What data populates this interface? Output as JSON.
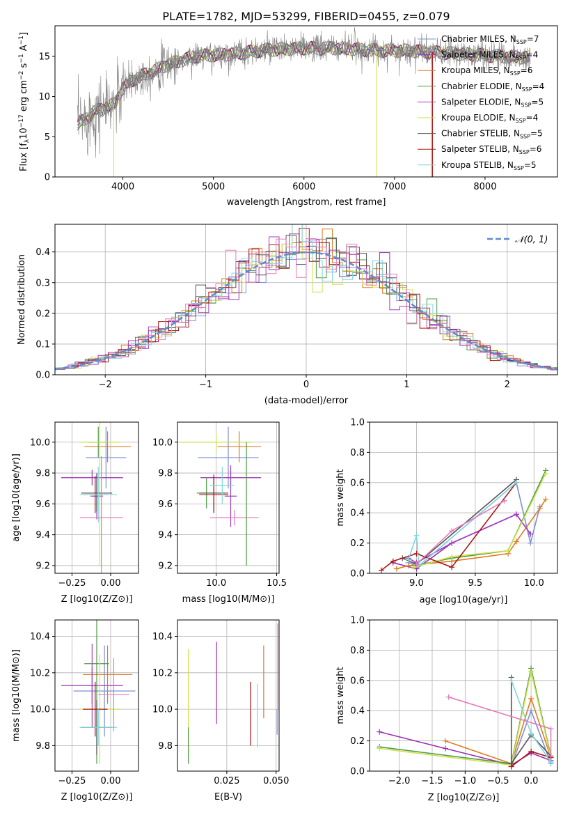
{
  "figure_title": "PLATE=1782, MJD=53299, FIBERID=0455, z=0.079",
  "colors": {
    "Chabrier MILES": "#7a8fd6",
    "Salpeter MILES": "#9b2fb0",
    "Kroupa MILES": "#e07a1f",
    "Chabrier ELODIE": "#4f9a45",
    "Salpeter ELODIE": "#a03fc0",
    "Kroupa ELODIE": "#cde24a",
    "Chabrier STELIB": "#555555",
    "Salpeter STELIB": "#aa1515",
    "Kroupa STELIB": "#7fd6dc",
    "pink": "#e57ab8",
    "gauss": "#5b8bd0",
    "spectrum_gray": "#808080"
  },
  "chart_data": [
    {
      "id": "spectrum",
      "type": "line",
      "xlabel": "wavelength [Angstrom, rest frame]",
      "ylabel": "Flux [f_λ 10^-17 erg cm^-2 s^-1 A^-1]",
      "xlim": [
        3250,
        8800
      ],
      "ylim": [
        0,
        18.8
      ],
      "xticks": [
        4000,
        5000,
        6000,
        7000,
        8000
      ],
      "yticks": [
        0,
        5,
        10,
        15
      ],
      "legend_position": "top-right",
      "continuum": [
        [
          3500,
          6.5
        ],
        [
          3700,
          8.2
        ],
        [
          3900,
          9.0
        ],
        [
          4000,
          11.0
        ],
        [
          4100,
          12.0
        ],
        [
          4300,
          13.0
        ],
        [
          4500,
          14.0
        ],
        [
          4800,
          15.0
        ],
        [
          5200,
          15.3
        ],
        [
          5600,
          15.8
        ],
        [
          6000,
          16.0
        ],
        [
          6400,
          16.0
        ],
        [
          6800,
          15.7
        ],
        [
          7200,
          15.7
        ],
        [
          7400,
          15.5
        ],
        [
          7600,
          15.4
        ],
        [
          7900,
          15.2
        ],
        [
          8200,
          15.0
        ],
        [
          8500,
          14.8
        ]
      ],
      "series": [
        {
          "name": "Chabrier MILES",
          "nssp": "7"
        },
        {
          "name": "Salpeter MILES",
          "nssp": "4"
        },
        {
          "name": "Kroupa MILES",
          "nssp": "6"
        },
        {
          "name": "Chabrier ELODIE",
          "nssp": "4"
        },
        {
          "name": "Salpeter ELODIE",
          "nssp": "5"
        },
        {
          "name": "Kroupa ELODIE",
          "nssp": "4"
        },
        {
          "name": "Chabrier STELIB",
          "nssp": "5"
        },
        {
          "name": "Salpeter STELIB",
          "nssp": "6"
        },
        {
          "name": "Kroupa STELIB",
          "nssp": "5"
        }
      ]
    },
    {
      "id": "residuals",
      "type": "area",
      "xlabel": "(data-model)/error",
      "ylabel": "Normed distribution",
      "xlim": [
        -2.5,
        2.5
      ],
      "ylim": [
        0,
        0.49
      ],
      "xticks": [
        -2,
        -1,
        0,
        1,
        2
      ],
      "yticks": [
        0.0,
        0.1,
        0.2,
        0.3,
        0.4
      ],
      "grid": true,
      "legend_label": "𝒩(0, 1)",
      "legend_position": "top-right"
    },
    {
      "id": "age_vs_Z",
      "type": "scatter",
      "xlabel": "Z [log10(Z/Z⊙)]",
      "ylabel": "age  [log10(age/yr)]",
      "xlim": [
        -0.36,
        0.18
      ],
      "ylim": [
        9.15,
        10.13
      ],
      "xticks": [
        -0.25,
        0.0
      ],
      "xticklabels": [
        "−0.25",
        "0.00"
      ],
      "yticks": [
        9.2,
        9.4,
        9.6,
        9.8,
        10.0
      ],
      "grid": true,
      "points": [
        {
          "color": "Chabrier MILES",
          "x": -0.03,
          "xerr": 0.13,
          "y": 9.9,
          "yerr": 0.2
        },
        {
          "color": "Salpeter MILES",
          "x": -0.12,
          "xerr": 0.2,
          "y": 9.77,
          "yerr": 0.05
        },
        {
          "color": "Kroupa MILES",
          "x": -0.02,
          "xerr": 0.15,
          "y": 9.97,
          "yerr": 0.1
        },
        {
          "color": "Chabrier ELODIE",
          "x": -0.08,
          "xerr": 0.06,
          "y": 10.0,
          "yerr": 0.1
        },
        {
          "color": "Salpeter ELODIE",
          "x": -0.09,
          "xerr": 0.04,
          "y": 9.65,
          "yerr": 0.15
        },
        {
          "color": "Kroupa ELODIE",
          "x": -0.07,
          "xerr": 0.13,
          "y": 10.0,
          "yerr": 0.8
        },
        {
          "color": "Chabrier STELIB",
          "x": -0.09,
          "xerr": 0.1,
          "y": 9.67,
          "yerr": 0.12
        },
        {
          "color": "Salpeter STELIB",
          "x": -0.1,
          "xerr": 0.08,
          "y": 9.66,
          "yerr": 0.12
        },
        {
          "color": "Kroupa STELIB",
          "x": -0.08,
          "xerr": 0.12,
          "y": 9.66,
          "yerr": 0.18
        },
        {
          "color": "pink",
          "x": -0.06,
          "xerr": 0.14,
          "y": 9.51,
          "yerr": 0.4
        }
      ]
    },
    {
      "id": "age_vs_mass",
      "type": "scatter",
      "xlabel": "mass [log10(M/M⊙)]",
      "xlim": [
        9.68,
        10.52
      ],
      "ylim": [
        9.15,
        10.13
      ],
      "xticks": [
        10.0,
        10.5
      ],
      "yticks": [
        9.2,
        9.4,
        9.6,
        9.8,
        10.0
      ],
      "grid": true,
      "points": [
        {
          "color": "Chabrier MILES",
          "x": 10.1,
          "xerr": 0.25,
          "y": 9.9,
          "yerr": 0.2
        },
        {
          "color": "Salpeter MILES",
          "x": 10.12,
          "xerr": 0.25,
          "y": 9.77,
          "yerr": 0.05
        },
        {
          "color": "Kroupa MILES",
          "x": 10.19,
          "xerr": 0.18,
          "y": 9.97,
          "yerr": 0.1
        },
        {
          "color": "Chabrier ELODIE",
          "x": 9.92,
          "xerr": 0.08,
          "y": 9.67,
          "yerr": 0.1
        },
        {
          "color": "Salpeter ELODIE",
          "x": 10.12,
          "xerr": 0.05,
          "y": 9.65,
          "yerr": 0.2
        },
        {
          "color": "Kroupa ELODIE",
          "x": 10.0,
          "xerr": 0.3,
          "y": 10.0,
          "yerr": 0.05
        },
        {
          "color": "Chabrier STELIB",
          "x": 9.98,
          "xerr": 0.12,
          "y": 9.67,
          "yerr": 0.12
        },
        {
          "color": "Salpeter STELIB",
          "x": 9.98,
          "xerr": 0.12,
          "y": 9.66,
          "yerr": 0.12
        },
        {
          "color": "Kroupa STELIB",
          "x": 10.05,
          "xerr": 0.1,
          "y": 9.72,
          "yerr": 0.12
        },
        {
          "color": "pink",
          "x": 10.15,
          "xerr": 0.2,
          "y": 9.51,
          "yerr": 0.05
        },
        {
          "color": "Chabrier ELODIE",
          "x": 10.25,
          "xerr": 0.0,
          "y": 9.6,
          "yerr": 0.4
        }
      ]
    },
    {
      "id": "massweight_vs_age",
      "type": "line",
      "xlabel": "age  [log10(age/yr)]",
      "ylabel": "mass weight",
      "xlim": [
        8.6,
        10.2
      ],
      "ylim": [
        0.0,
        1.0
      ],
      "xticks": [
        9.0,
        9.5,
        10.0
      ],
      "yticks": [
        0.0,
        0.2,
        0.4,
        0.6,
        0.8,
        1.0
      ],
      "grid": true,
      "series": [
        {
          "color": "Chabrier MILES",
          "x": [
            8.93,
            9.02,
            9.85,
            9.97,
            10.05
          ],
          "y": [
            0.07,
            0.05,
            0.6,
            0.2,
            0.44
          ]
        },
        {
          "color": "Salpeter MILES",
          "x": [
            8.8,
            9.0,
            9.3,
            9.85,
            9.97
          ],
          "y": [
            0.07,
            0.03,
            0.2,
            0.39,
            0.26
          ]
        },
        {
          "color": "Kroupa MILES",
          "x": [
            8.83,
            8.93,
            9.3,
            9.78,
            9.85,
            10.05,
            10.1
          ],
          "y": [
            0.03,
            0.05,
            0.08,
            0.13,
            0.21,
            0.43,
            0.49
          ]
        },
        {
          "color": "Chabrier ELODIE",
          "x": [
            8.98,
            9.3,
            9.78,
            10.1
          ],
          "y": [
            0.05,
            0.1,
            0.15,
            0.68
          ]
        },
        {
          "color": "Salpeter ELODIE",
          "x": [
            8.93,
            9.0,
            9.3,
            9.85,
            9.97
          ],
          "y": [
            0.1,
            0.07,
            0.2,
            0.39,
            0.26
          ]
        },
        {
          "color": "Kroupa ELODIE",
          "x": [
            8.98,
            9.3,
            9.78,
            10.1
          ],
          "y": [
            0.04,
            0.11,
            0.15,
            0.66
          ]
        },
        {
          "color": "Chabrier STELIB",
          "x": [
            8.88,
            9.0,
            9.85
          ],
          "y": [
            0.1,
            0.06,
            0.62
          ]
        },
        {
          "color": "Salpeter STELIB",
          "x": [
            8.7,
            8.8,
            9.0,
            9.3,
            9.85
          ],
          "y": [
            0.02,
            0.08,
            0.13,
            0.04,
            0.6
          ]
        },
        {
          "color": "Kroupa STELIB",
          "x": [
            8.93,
            9.0,
            9.02,
            9.85
          ],
          "y": [
            0.09,
            0.25,
            0.05,
            0.6
          ]
        },
        {
          "color": "pink",
          "x": [
            9.0,
            9.3,
            9.75
          ],
          "y": [
            0.06,
            0.28,
            0.48
          ]
        }
      ]
    },
    {
      "id": "mass_vs_Z",
      "type": "scatter",
      "xlabel": "Z [log10(Z/Z⊙)]",
      "ylabel": "mass [log10(M/M⊙)]",
      "xlim": [
        -0.36,
        0.18
      ],
      "ylim": [
        9.66,
        10.49
      ],
      "xticks": [
        -0.25,
        0.0
      ],
      "xticklabels": [
        "−0.25",
        "0.00"
      ],
      "yticks": [
        9.8,
        10.0,
        10.2,
        10.4
      ],
      "grid": true,
      "points": [
        {
          "color": "Chabrier MILES",
          "x": -0.04,
          "xerr": 0.2,
          "y": 10.1,
          "yerr": 0.25
        },
        {
          "color": "Salpeter MILES",
          "x": -0.12,
          "xerr": 0.2,
          "y": 10.13,
          "yerr": 0.1
        },
        {
          "color": "Kroupa MILES",
          "x": -0.02,
          "xerr": 0.16,
          "y": 10.19,
          "yerr": 0.16
        },
        {
          "color": "Chabrier ELODIE",
          "x": -0.09,
          "xerr": 0.08,
          "y": 10.25,
          "yerr": 0.55
        },
        {
          "color": "Salpeter ELODIE",
          "x": -0.12,
          "xerr": 0.03,
          "y": 10.13,
          "yerr": 0.23
        },
        {
          "color": "Kroupa ELODIE",
          "x": -0.07,
          "xerr": 0.13,
          "y": 10.0,
          "yerr": 0.3
        },
        {
          "color": "Chabrier STELIB",
          "x": -0.09,
          "xerr": 0.1,
          "y": 9.9,
          "yerr": 0.15
        },
        {
          "color": "Salpeter STELIB",
          "x": -0.1,
          "xerr": 0.08,
          "y": 10.0,
          "yerr": 0.15
        },
        {
          "color": "Kroupa STELIB",
          "x": -0.08,
          "xerr": 0.12,
          "y": 9.9,
          "yerr": 0.1
        },
        {
          "color": "pink",
          "x": 0.02,
          "xerr": 0.1,
          "y": 10.08,
          "yerr": 0.2
        }
      ]
    },
    {
      "id": "mass_vs_EBV",
      "type": "scatter",
      "xlabel": "E(B-V)",
      "xlim": [
        0.0,
        0.0515
      ],
      "ylim": [
        9.66,
        10.49
      ],
      "xticks": [
        0.025,
        0.05
      ],
      "xticklabels": [
        "0.025",
        "0.050"
      ],
      "yticks": [
        9.8,
        10.0,
        10.2,
        10.4
      ],
      "grid": true,
      "points": [
        {
          "color": "Kroupa ELODIE",
          "x": 0.0055,
          "ymin": 9.75,
          "ymax": 10.33
        },
        {
          "color": "Chabrier ELODIE",
          "x": 0.0055,
          "ymin": 9.7,
          "ymax": 9.9
        },
        {
          "color": "Salpeter MILES",
          "x": 0.0198,
          "ymin": 9.92,
          "ymax": 10.37
        },
        {
          "color": "Salpeter STELIB",
          "x": 0.037,
          "ymin": 9.8,
          "ymax": 10.15
        },
        {
          "color": "Kroupa STELIB",
          "x": 0.0405,
          "ymin": 9.79,
          "ymax": 10.14
        },
        {
          "color": "Kroupa MILES",
          "x": 0.0437,
          "ymin": 9.95,
          "ymax": 10.35
        },
        {
          "color": "pink",
          "x": 0.0508,
          "ymin": 10.0,
          "ymax": 10.47
        },
        {
          "color": "Chabrier MILES",
          "x": 0.0505,
          "ymin": 9.86,
          "ymax": 10.0
        }
      ]
    },
    {
      "id": "massweight_vs_Z",
      "type": "line",
      "xlabel": "Z [log10(Z/Z⊙)]",
      "ylabel": "mass weight",
      "xlim": [
        -2.45,
        0.4
      ],
      "ylim": [
        0.0,
        1.0
      ],
      "xticks": [
        -2.0,
        -1.5,
        -1.0,
        -0.5,
        0.0
      ],
      "xticklabels": [
        "−2.0",
        "−1.5",
        "−1.0",
        "−0.5",
        "0.0"
      ],
      "yticks": [
        0.0,
        0.2,
        0.4,
        0.6,
        0.8,
        1.0
      ],
      "grid": true,
      "series": [
        {
          "color": "Chabrier MILES",
          "x": [
            -0.3,
            0.0,
            0.3
          ],
          "y": [
            0.03,
            0.4,
            0.05
          ]
        },
        {
          "color": "Salpeter MILES",
          "x": [
            -2.3,
            -1.3,
            -0.3,
            0.0,
            0.3
          ],
          "y": [
            0.26,
            0.15,
            0.04,
            0.12,
            0.07
          ]
        },
        {
          "color": "Kroupa MILES",
          "x": [
            -1.3,
            -0.3,
            0.0,
            0.3
          ],
          "y": [
            0.2,
            0.05,
            0.48,
            0.09
          ]
        },
        {
          "color": "Chabrier ELODIE",
          "x": [
            -2.3,
            -0.3,
            0.0,
            0.3
          ],
          "y": [
            0.16,
            0.05,
            0.68,
            0.1
          ]
        },
        {
          "color": "Kroupa ELODIE",
          "x": [
            -2.3,
            -0.3,
            0.0,
            0.3
          ],
          "y": [
            0.15,
            0.04,
            0.66,
            0.09
          ]
        },
        {
          "color": "Chabrier STELIB",
          "x": [
            -0.3,
            -0.3,
            0.0,
            0.3
          ],
          "y": [
            0.62,
            0.05,
            0.24,
            0.1
          ]
        },
        {
          "color": "Salpeter STELIB",
          "x": [
            -0.3,
            0.0,
            0.3
          ],
          "y": [
            0.03,
            0.13,
            0.09
          ]
        },
        {
          "color": "Kroupa STELIB",
          "x": [
            -0.3,
            0.0,
            0.3
          ],
          "y": [
            0.6,
            0.25,
            0.06
          ]
        },
        {
          "color": "pink",
          "x": [
            -1.25,
            0.3,
            0.3
          ],
          "y": [
            0.49,
            0.28,
            0.1
          ]
        }
      ]
    }
  ]
}
